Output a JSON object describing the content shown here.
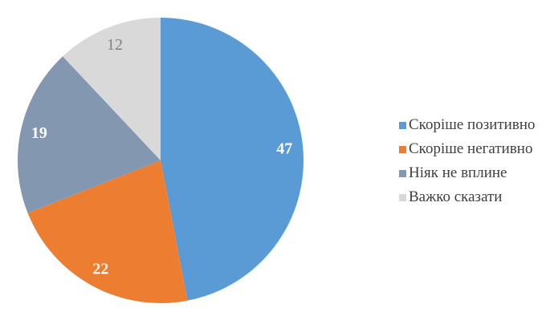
{
  "background_color": "#ffffff",
  "legend_text_color": "#404040",
  "chart_data": {
    "type": "pie",
    "title": "",
    "total": 100,
    "start_angle_deg": 0,
    "direction": "clockwise",
    "legend_position": "right",
    "labels_show": "values",
    "series": [
      {
        "label": "Скоріше позитивно",
        "value": 47,
        "color": "#5B9BD5",
        "label_color": "#FFFFFF",
        "label_weight": "bold"
      },
      {
        "label": "Скоріше негативно",
        "value": 22,
        "color": "#ED7D31",
        "label_color": "#FFFFFF",
        "label_weight": "bold"
      },
      {
        "label": "Ніяк не вплине",
        "value": 19,
        "color": "#8497B0",
        "label_color": "#FFFFFF",
        "label_weight": "bold"
      },
      {
        "label": "Важко сказати",
        "value": 12,
        "color": "#D9D9D9",
        "label_color": "#808080",
        "label_weight": "normal"
      }
    ]
  }
}
